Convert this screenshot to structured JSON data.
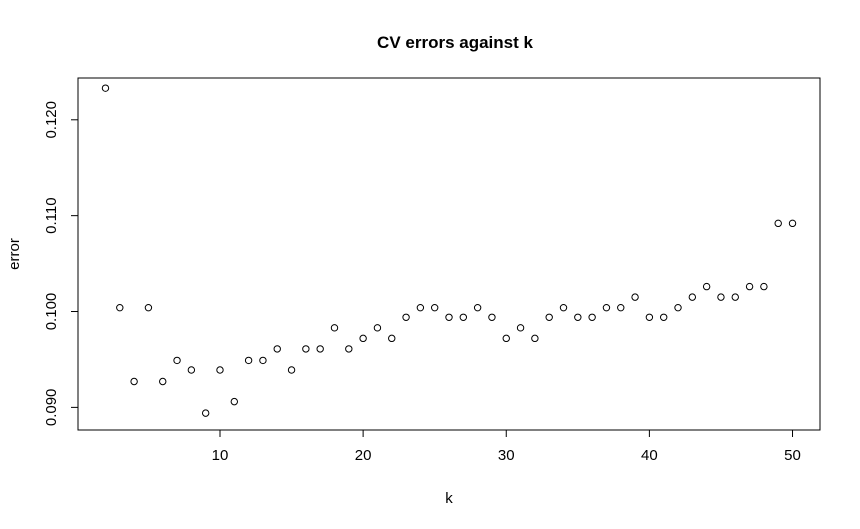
{
  "chart_data": {
    "type": "scatter",
    "title": "CV errors against k",
    "xlabel": "k",
    "ylabel": "error",
    "xlim": [
      2,
      50
    ],
    "ylim": [
      0.089,
      0.123
    ],
    "xticks": [
      10,
      20,
      30,
      40,
      50
    ],
    "xtick_labels": [
      "10",
      "20",
      "30",
      "40",
      "50"
    ],
    "yticks": [
      0.09,
      0.1,
      0.11,
      0.12
    ],
    "ytick_labels": [
      "0.090",
      "0.100",
      "0.110",
      "0.120"
    ],
    "grid": false,
    "marker": "open-circle",
    "x": [
      2,
      3,
      4,
      5,
      6,
      7,
      8,
      9,
      10,
      11,
      12,
      13,
      14,
      15,
      16,
      17,
      18,
      19,
      20,
      21,
      22,
      23,
      24,
      25,
      26,
      27,
      28,
      29,
      30,
      31,
      32,
      33,
      34,
      35,
      36,
      37,
      38,
      39,
      40,
      41,
      42,
      43,
      44,
      45,
      46,
      47,
      48,
      49,
      50
    ],
    "y": [
      0.1233,
      0.1004,
      0.0927,
      0.1004,
      0.0927,
      0.0949,
      0.0939,
      0.0894,
      0.0939,
      0.0906,
      0.0949,
      0.0949,
      0.0961,
      0.0939,
      0.0961,
      0.0961,
      0.0983,
      0.0961,
      0.0972,
      0.0983,
      0.0972,
      0.0994,
      0.1004,
      0.1004,
      0.0994,
      0.0994,
      0.1004,
      0.0994,
      0.0972,
      0.0983,
      0.0972,
      0.0994,
      0.1004,
      0.0994,
      0.0994,
      0.1004,
      0.1004,
      0.1015,
      0.0994,
      0.0994,
      0.1004,
      0.1015,
      0.1026,
      0.1015,
      0.1015,
      0.1026,
      0.1026,
      0.1092,
      0.1092
    ]
  }
}
